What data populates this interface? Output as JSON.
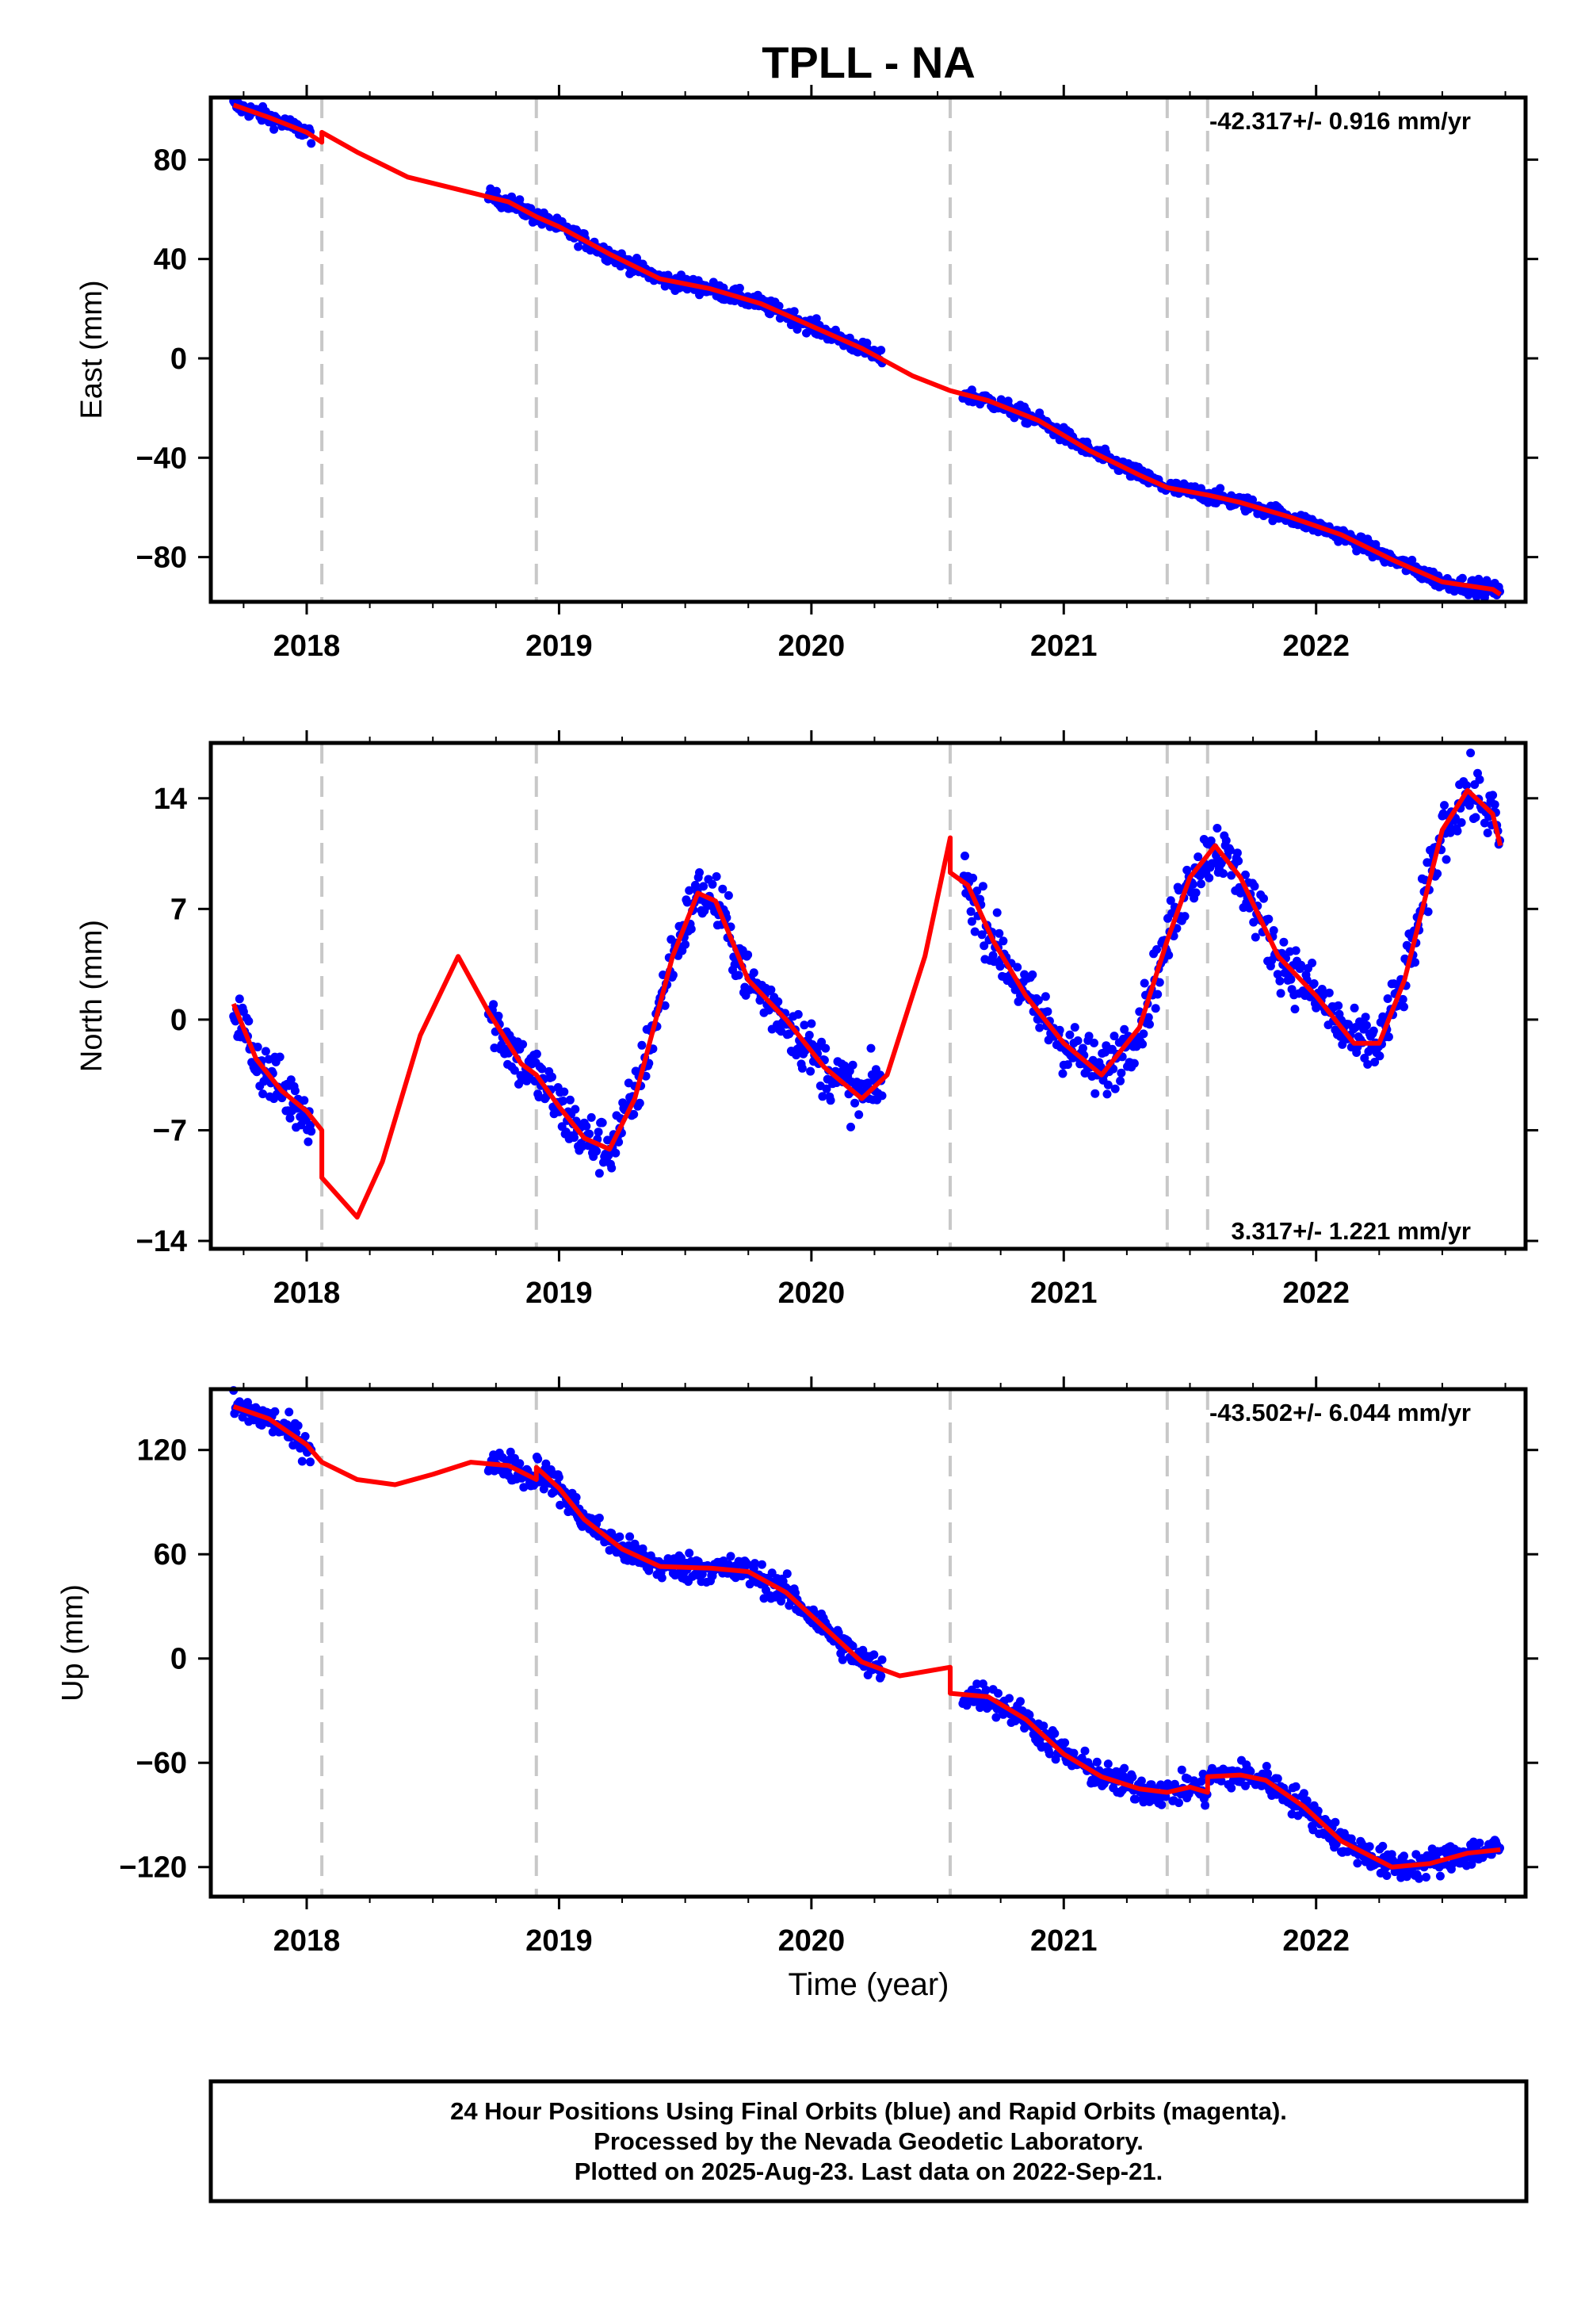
{
  "title": "TPLL - NA",
  "xlabel": "Time (year)",
  "footer": {
    "line1": "24 Hour Positions Using Final Orbits (blue) and Rapid Orbits (magenta).",
    "line2": "Processed by the Nevada Geodetic Laboratory.",
    "line3": "Plotted on 2025-Aug-23. Last data on 2022-Sep-21."
  },
  "colors": {
    "data": "#0000ff",
    "model": "#ff0000",
    "breaks": "#c8c8c8"
  },
  "chart_data": [
    {
      "type": "scatter",
      "name": "east",
      "ylabel": "East (mm)",
      "rate_text": "-42.317+/- 0.916 mm/yr",
      "xlim": [
        2017.62,
        2022.83
      ],
      "ylim": [
        -98,
        105
      ],
      "xticks": [
        2018,
        2019,
        2020,
        2021,
        2022
      ],
      "yticks": [
        80,
        40,
        0,
        -40,
        -80
      ],
      "ytick_labels": [
        "80",
        "40",
        "0",
        "−40",
        "−80"
      ],
      "breaks": [
        2018.06,
        2018.91,
        2020.55,
        2021.41,
        2021.57
      ],
      "data_spans": [
        [
          2017.71,
          2018.02
        ],
        [
          2018.72,
          2020.28
        ],
        [
          2020.6,
          2022.73
        ]
      ],
      "model": {
        "x": [
          2017.71,
          2017.85,
          2018.0,
          2018.06,
          2018.06,
          2018.2,
          2018.4,
          2018.6,
          2018.8,
          2018.91,
          2019.0,
          2019.2,
          2019.4,
          2019.6,
          2019.8,
          2020.0,
          2020.2,
          2020.4,
          2020.55,
          2020.7,
          2020.9,
          2021.1,
          2021.3,
          2021.41,
          2021.57,
          2021.7,
          2021.9,
          2022.1,
          2022.3,
          2022.5,
          2022.7,
          2022.73
        ],
        "y": [
          102,
          97,
          91,
          87,
          91,
          83,
          73,
          68,
          63,
          57,
          53,
          42,
          32,
          28,
          22,
          13,
          4,
          -7,
          -13,
          -17,
          -25,
          -37,
          -47,
          -52,
          -55,
          -58,
          -64,
          -71,
          -81,
          -90,
          -93,
          -95
        ]
      },
      "noise": 2.2,
      "point_step": 0.004
    },
    {
      "type": "scatter",
      "name": "north",
      "ylabel": "North (mm)",
      "rate_text": "3.317+/- 1.221 mm/yr",
      "xlim": [
        2017.62,
        2022.83
      ],
      "ylim": [
        -14.5,
        17.5
      ],
      "xticks": [
        2018,
        2019,
        2020,
        2021,
        2022
      ],
      "yticks": [
        14,
        7,
        0,
        -7,
        -14
      ],
      "ytick_labels": [
        "14",
        "7",
        "0",
        "−7",
        "−14"
      ],
      "breaks": [
        2018.06,
        2018.91,
        2020.55,
        2021.41,
        2021.57
      ],
      "data_spans": [
        [
          2017.71,
          2018.02
        ],
        [
          2018.72,
          2020.28
        ],
        [
          2020.6,
          2022.73
        ]
      ],
      "model": {
        "x": [
          2017.71,
          2017.8,
          2017.9,
          2018.0,
          2018.06,
          2018.06,
          2018.2,
          2018.3,
          2018.45,
          2018.6,
          2018.72,
          2018.85,
          2018.91,
          2019.0,
          2019.1,
          2019.2,
          2019.3,
          2019.45,
          2019.55,
          2019.62,
          2019.75,
          2019.9,
          2020.05,
          2020.2,
          2020.3,
          2020.45,
          2020.55,
          2020.55,
          2020.62,
          2020.72,
          2020.85,
          2021.0,
          2021.15,
          2021.3,
          2021.41,
          2021.5,
          2021.6,
          2021.7,
          2021.85,
          2022.0,
          2022.15,
          2022.25,
          2022.35,
          2022.5,
          2022.6,
          2022.7,
          2022.73
        ],
        "y": [
          1,
          -2.5,
          -4.5,
          -5.8,
          -7,
          -10,
          -12.5,
          -9,
          -1,
          4,
          0.5,
          -2.8,
          -3.5,
          -5.5,
          -7.5,
          -8.2,
          -5,
          4,
          8,
          7.5,
          2.5,
          0,
          -3,
          -5,
          -3.5,
          4,
          11.5,
          9.3,
          8.5,
          5,
          1.5,
          -1.5,
          -3.5,
          -0.5,
          5,
          9,
          11,
          9,
          4,
          1.5,
          -1.5,
          -1.5,
          2.5,
          12,
          14.5,
          13,
          11
        ]
      },
      "noise": 1.3,
      "point_step": 0.004
    },
    {
      "type": "scatter",
      "name": "up",
      "ylabel": "Up (mm)",
      "rate_text": "-43.502+/- 6.044 mm/yr",
      "xlim": [
        2017.62,
        2022.83
      ],
      "ylim": [
        -137,
        155
      ],
      "xticks": [
        2018,
        2019,
        2020,
        2021,
        2022
      ],
      "yticks": [
        120,
        60,
        0,
        -60,
        -120
      ],
      "ytick_labels": [
        "120",
        "60",
        "0",
        "−60",
        "−120"
      ],
      "breaks": [
        2018.06,
        2018.91,
        2020.55,
        2021.41,
        2021.57
      ],
      "data_spans": [
        [
          2017.71,
          2018.02
        ],
        [
          2018.72,
          2020.28
        ],
        [
          2020.6,
          2022.73
        ]
      ],
      "model": {
        "x": [
          2017.71,
          2017.85,
          2018.0,
          2018.06,
          2018.2,
          2018.35,
          2018.5,
          2018.65,
          2018.8,
          2018.91,
          2018.91,
          2019.0,
          2019.1,
          2019.25,
          2019.4,
          2019.6,
          2019.75,
          2019.9,
          2020.05,
          2020.2,
          2020.35,
          2020.55,
          2020.55,
          2020.7,
          2020.85,
          2021.0,
          2021.15,
          2021.3,
          2021.41,
          2021.5,
          2021.57,
          2021.57,
          2021.7,
          2021.8,
          2021.95,
          2022.1,
          2022.3,
          2022.45,
          2022.6,
          2022.73
        ],
        "y": [
          145,
          138,
          123,
          113,
          103,
          100,
          106,
          113,
          111,
          103,
          110,
          98,
          80,
          63,
          53,
          52,
          50,
          38,
          18,
          -2,
          -10,
          -5,
          -20,
          -22,
          -35,
          -55,
          -68,
          -75,
          -77,
          -74,
          -77,
          -68,
          -67,
          -70,
          -85,
          -105,
          -120,
          -118,
          -112,
          -110
        ]
      },
      "noise": 6,
      "point_step": 0.004
    }
  ]
}
